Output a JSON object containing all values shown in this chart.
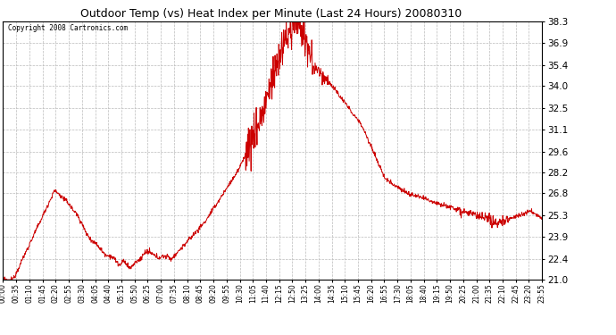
{
  "title": "Outdoor Temp (vs) Heat Index per Minute (Last 24 Hours) 20080310",
  "copyright": "Copyright 2008 Cartronics.com",
  "line_color": "#cc0000",
  "bg_color": "#ffffff",
  "plot_bg_color": "#ffffff",
  "grid_color": "#bbbbbb",
  "ylim": [
    21.0,
    38.3
  ],
  "yticks": [
    21.0,
    22.4,
    23.9,
    25.3,
    26.8,
    28.2,
    29.6,
    31.1,
    32.5,
    34.0,
    35.4,
    36.9,
    38.3
  ],
  "xtick_labels": [
    "00:00",
    "00:35",
    "01:10",
    "01:45",
    "02:20",
    "02:55",
    "03:30",
    "04:05",
    "04:40",
    "05:15",
    "05:50",
    "06:25",
    "07:00",
    "07:35",
    "08:10",
    "08:45",
    "09:20",
    "09:55",
    "10:30",
    "11:05",
    "11:40",
    "12:15",
    "12:50",
    "13:25",
    "14:00",
    "14:35",
    "15:10",
    "15:45",
    "16:20",
    "16:55",
    "17:30",
    "18:05",
    "18:40",
    "19:15",
    "19:50",
    "20:25",
    "21:00",
    "21:35",
    "22:10",
    "22:45",
    "23:20",
    "23:55"
  ],
  "num_points": 1440
}
